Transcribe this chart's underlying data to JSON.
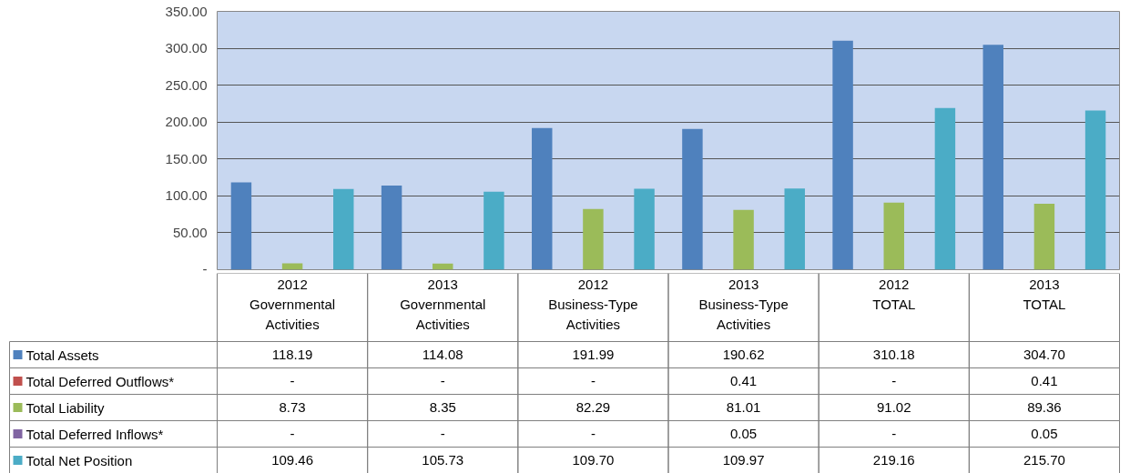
{
  "chart_data": {
    "type": "bar",
    "categories": [
      "2012\nGovernmental\nActivities",
      "2013\nGovernmental\nActivities",
      "2012\nBusiness-Type\nActivities",
      "2013\nBusiness-Type\nActivities",
      "2012\nTOTAL",
      "2013\nTOTAL"
    ],
    "series": [
      {
        "name": "Total Assets",
        "color": "#4f81bd",
        "values": [
          118.19,
          114.08,
          191.99,
          190.62,
          310.18,
          304.7
        ],
        "value_labels": [
          "118.19",
          "114.08",
          "191.99",
          "190.62",
          "310.18",
          "304.70"
        ]
      },
      {
        "name": "Total Deferred Outflows*",
        "color": "#c0504d",
        "values": [
          0,
          0,
          0,
          0.41,
          0,
          0.41
        ],
        "value_labels": [
          "-",
          "-",
          "-",
          "0.41",
          "-",
          "0.41"
        ]
      },
      {
        "name": "Total Liability",
        "color": "#9bbb59",
        "values": [
          8.73,
          8.35,
          82.29,
          81.01,
          91.02,
          89.36
        ],
        "value_labels": [
          "8.73",
          "8.35",
          "82.29",
          "81.01",
          "91.02",
          "89.36"
        ]
      },
      {
        "name": "Total Deferred Inflows*",
        "color": "#8064a2",
        "values": [
          0,
          0,
          0,
          0.05,
          0,
          0.05
        ],
        "value_labels": [
          "-",
          "-",
          "-",
          "0.05",
          "-",
          "0.05"
        ]
      },
      {
        "name": "Total Net Position",
        "color": "#4bacc6",
        "values": [
          109.46,
          105.73,
          109.7,
          109.97,
          219.16,
          215.7
        ],
        "value_labels": [
          "109.46",
          "105.73",
          "109.70",
          "109.97",
          "219.16",
          "215.70"
        ]
      }
    ],
    "ylim": [
      0,
      350
    ],
    "yticks": [
      {
        "value": 0,
        "label": "-"
      },
      {
        "value": 50,
        "label": "50.00"
      },
      {
        "value": 100,
        "label": "100.00"
      },
      {
        "value": 150,
        "label": "150.00"
      },
      {
        "value": 200,
        "label": "200.00"
      },
      {
        "value": 250,
        "label": "250.00"
      },
      {
        "value": 300,
        "label": "300.00"
      },
      {
        "value": 350,
        "label": "350.00"
      }
    ],
    "grid": "y",
    "legend": "bottom"
  }
}
